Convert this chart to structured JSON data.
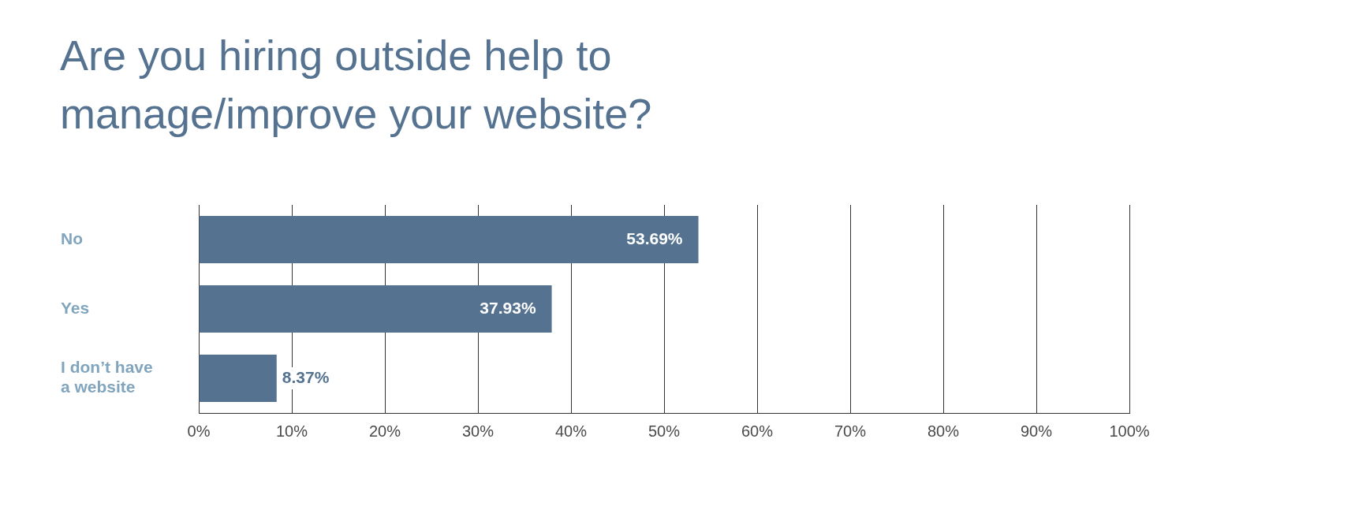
{
  "chart_data": {
    "type": "bar",
    "title": "Are you hiring outside help to manage/improve your website?",
    "orientation": "horizontal",
    "categories": [
      "No",
      "Yes",
      "I don’t have a website"
    ],
    "values": [
      53.69,
      37.93,
      8.37
    ],
    "color": "#557390",
    "value_labels": [
      "53.69%",
      "37.93%",
      "8.37%"
    ],
    "xlim": [
      0,
      100
    ],
    "xticks": [
      {
        "value": 0,
        "label": "0%"
      },
      {
        "value": 10,
        "label": "10%"
      },
      {
        "value": 20,
        "label": "20%"
      },
      {
        "value": 30,
        "label": "30%"
      },
      {
        "value": 40,
        "label": "40%"
      },
      {
        "value": 50,
        "label": "50%"
      },
      {
        "value": 60,
        "label": "60%"
      },
      {
        "value": 70,
        "label": "70%"
      },
      {
        "value": 80,
        "label": "80%"
      },
      {
        "value": 90,
        "label": "90%"
      },
      {
        "value": 100,
        "label": "100%"
      }
    ],
    "grid": "x"
  }
}
